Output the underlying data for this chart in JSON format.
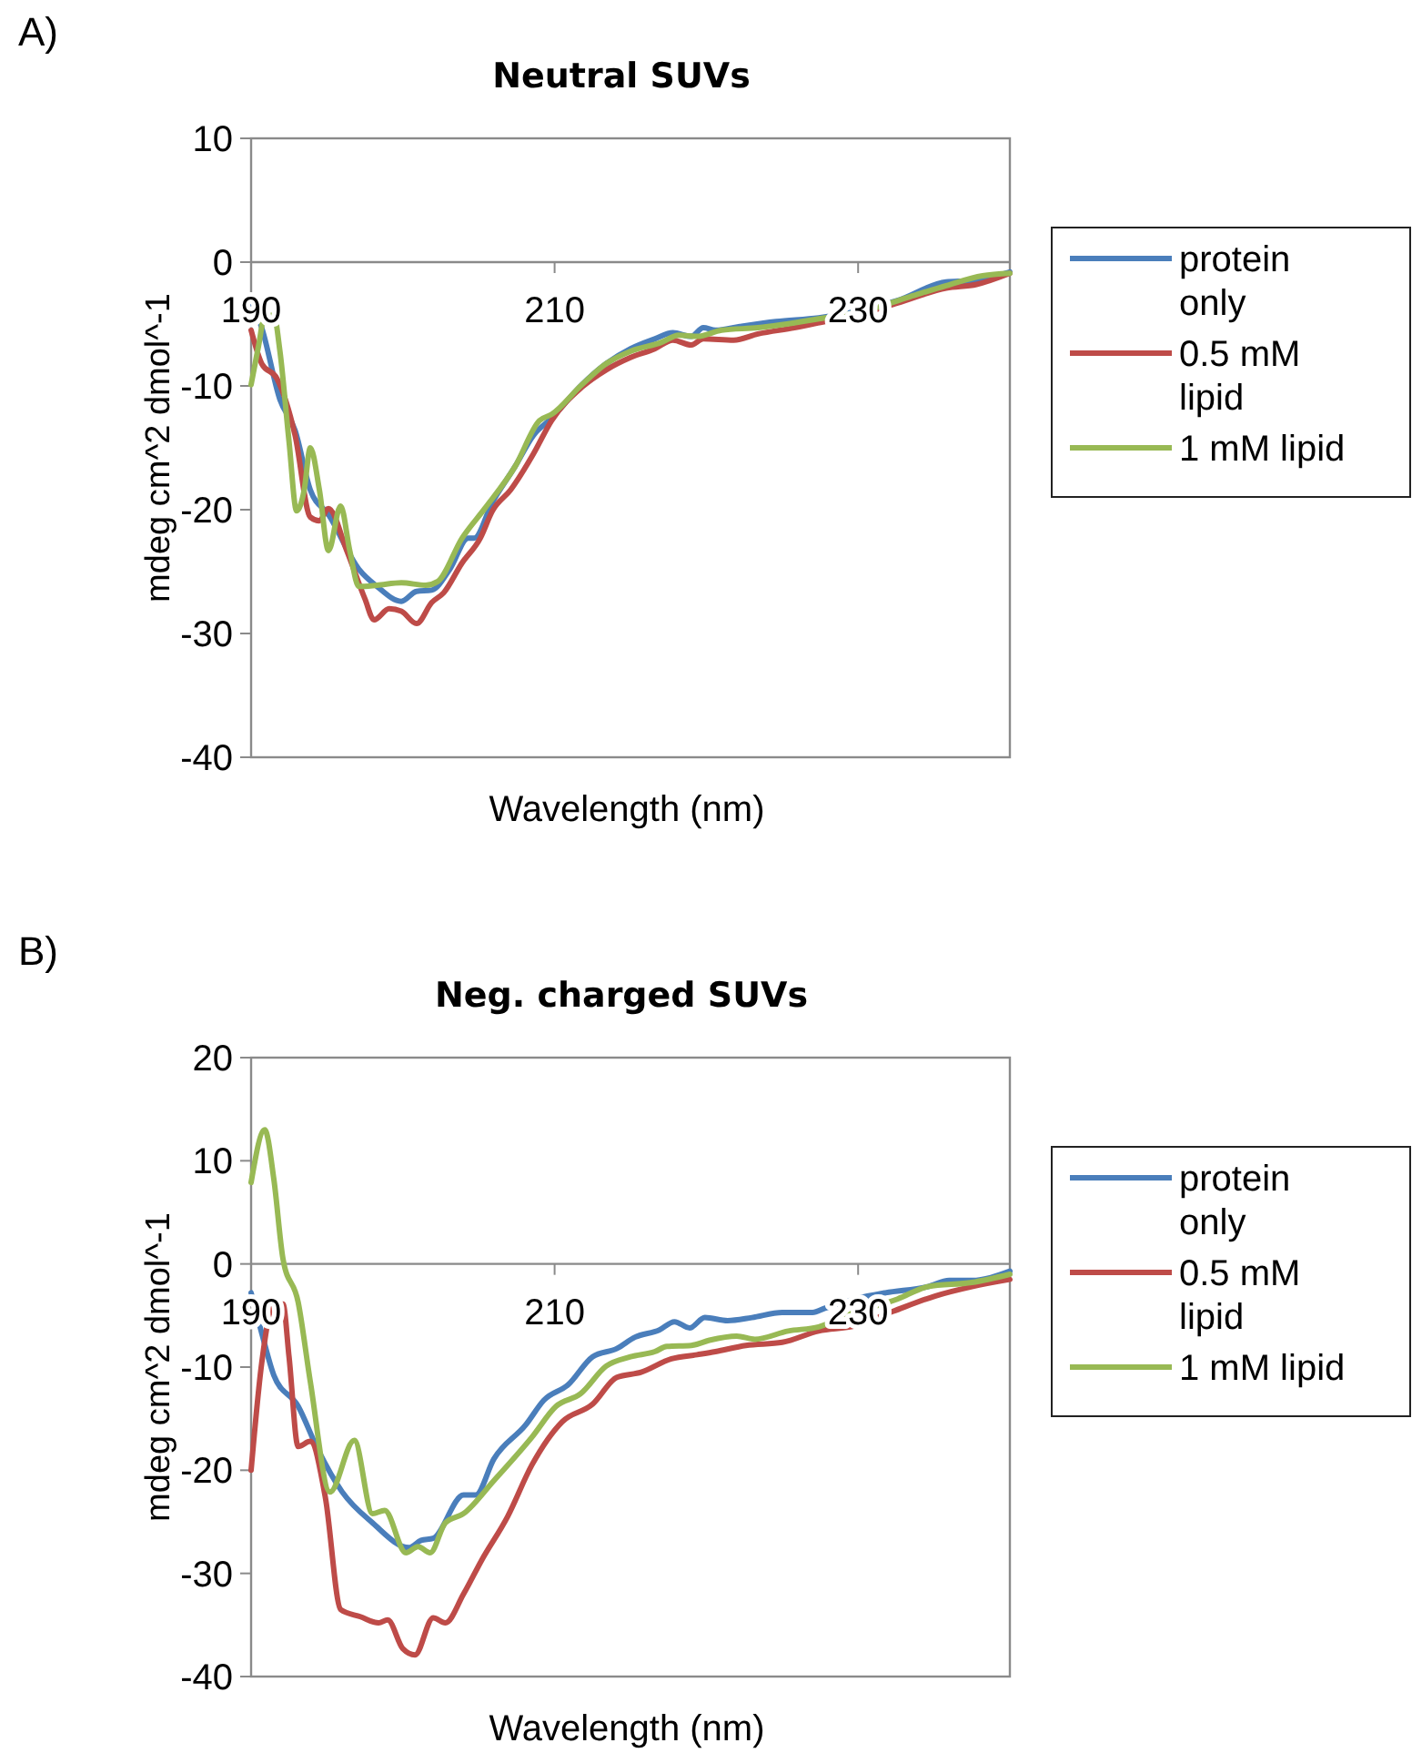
{
  "chart_data": [
    {
      "type": "line",
      "title": "Neutral SUVs",
      "xlabel": "Wavelength (nm)",
      "ylabel": "mdeg cm^2 dmol^-1",
      "annotations": [
        "A)"
      ],
      "xlim": [
        190,
        240
      ],
      "xticks": [
        190,
        210,
        230
      ],
      "ylim": [
        -40,
        10
      ],
      "yticks": [
        -40,
        -30,
        -20,
        -10,
        0,
        10
      ],
      "grid": false,
      "legend": "right",
      "line_style": "solid",
      "marker": "none",
      "series": [
        {
          "name": "protein only",
          "color": "#4a7ebb",
          "x": [
            190,
            190.7,
            191.9,
            192.9,
            193.9,
            195.1,
            197.1,
            198.3,
            199.9,
            200.9,
            201.9,
            203.1,
            204.3,
            204.7,
            205.9,
            207.4,
            208.6,
            209.8,
            211.8,
            213.4,
            215,
            216.6,
            217.8,
            219,
            219.8,
            220.6,
            222.2,
            224.6,
            227.4,
            229.8,
            232.6,
            235.8,
            237.4,
            240
          ],
          "values": [
            -3.1,
            -5.3,
            -11.1,
            -13.6,
            -18.4,
            -20.4,
            -24.8,
            -26.2,
            -27.4,
            -26.6,
            -26.5,
            -24.8,
            -22.3,
            -22.3,
            -19.4,
            -16.5,
            -14,
            -12.6,
            -9.9,
            -8.2,
            -7,
            -6.2,
            -5.7,
            -6,
            -5.3,
            -5.5,
            -5.2,
            -4.8,
            -4.5,
            -4,
            -3.1,
            -1.6,
            -1.5,
            -0.8
          ]
        },
        {
          "name": "0.5 mM lipid",
          "color": "#be4b48",
          "x": [
            190,
            190.7,
            191.7,
            192.9,
            193.9,
            194.5,
            195.1,
            196.3,
            197.5,
            198.1,
            199.1,
            199.9,
            200.9,
            201.9,
            202.7,
            203.9,
            205.1,
            205.9,
            207.1,
            208.6,
            209.8,
            211.8,
            213.4,
            215,
            216.6,
            217.8,
            219,
            219.8,
            221.8,
            223.4,
            225.8,
            227.8,
            229.8,
            232.6,
            235.8,
            237.8,
            240
          ],
          "values": [
            -5.5,
            -8.2,
            -9.4,
            -14,
            -20.6,
            -20.9,
            -19.9,
            -23.3,
            -27.2,
            -28.9,
            -28,
            -28.2,
            -29.2,
            -27.5,
            -26.7,
            -24.3,
            -22.3,
            -20.1,
            -18.4,
            -15.5,
            -12.8,
            -10.1,
            -8.7,
            -7.7,
            -7,
            -6.3,
            -6.7,
            -6.2,
            -6.3,
            -5.8,
            -5.3,
            -4.8,
            -4.3,
            -3.3,
            -2.1,
            -1.8,
            -0.9
          ]
        },
        {
          "name": "1 mM lipid",
          "color": "#98b954",
          "x": [
            190,
            190.5,
            190.9,
            191.5,
            191.9,
            192.5,
            193,
            193.5,
            193.9,
            194.5,
            195.1,
            195.9,
            196.5,
            197.1,
            198.3,
            199.9,
            201.5,
            202.3,
            203.9,
            205.4,
            207.4,
            209,
            209.8,
            211.8,
            213.4,
            215,
            217,
            218.2,
            219.4,
            221,
            223.4,
            227.8,
            230.2,
            233.4,
            235.8,
            238.2,
            240
          ],
          "values": [
            -9.9,
            -6.7,
            -4.3,
            -4.3,
            -7.2,
            -14.5,
            -20.1,
            -18.4,
            -15,
            -18.4,
            -23.3,
            -19.7,
            -23.3,
            -26.2,
            -26.1,
            -25.9,
            -26.1,
            -25.8,
            -22.3,
            -19.9,
            -16.5,
            -12.8,
            -12.3,
            -9.9,
            -8.2,
            -7.2,
            -6.5,
            -5.9,
            -6,
            -5.5,
            -5.3,
            -4.5,
            -4,
            -2.8,
            -1.9,
            -1.1,
            -0.9
          ]
        }
      ]
    },
    {
      "type": "line",
      "title": "Neg. charged SUVs",
      "xlabel": "Wavelength (nm)",
      "ylabel": "mdeg cm^2 dmol^-1",
      "annotations": [
        "B)"
      ],
      "xlim": [
        190,
        240
      ],
      "xticks": [
        190,
        210,
        230
      ],
      "ylim": [
        -40,
        20
      ],
      "yticks": [
        -40,
        -30,
        -20,
        -10,
        0,
        10,
        20
      ],
      "grid": false,
      "legend": "right",
      "line_style": "solid",
      "marker": "none",
      "series": [
        {
          "name": "protein only",
          "color": "#4a7ebb",
          "x": [
            190,
            190.7,
            191.5,
            193.1,
            194.4,
            196,
            198,
            200.4,
            201.2,
            202,
            204,
            204.8,
            206,
            208.1,
            209.3,
            210.9,
            212.5,
            214.1,
            215.3,
            216.9,
            217.9,
            218.9,
            219.9,
            221.4,
            223,
            225,
            227,
            227.8,
            229.8,
            231.8,
            234.6,
            236,
            237.5,
            240
          ],
          "values": [
            -2.8,
            -6.7,
            -10.8,
            -13.8,
            -18,
            -22.1,
            -25.1,
            -27.5,
            -26.8,
            -26.6,
            -22.4,
            -22.4,
            -18.9,
            -15.6,
            -13.2,
            -11.7,
            -9,
            -8.2,
            -7.1,
            -6.4,
            -5.6,
            -6.2,
            -5.2,
            -5.5,
            -5.2,
            -4.7,
            -4.7,
            -4.3,
            -3.4,
            -2.8,
            -2.2,
            -1.6,
            -1.6,
            -0.7
          ]
        },
        {
          "name": "0.5 mM lipid",
          "color": "#be4b48",
          "x": [
            190,
            190.7,
            191.5,
            192.1,
            192.5,
            193.1,
            193.9,
            194.9,
            195.9,
            197.2,
            198.4,
            199,
            200,
            200.8,
            202,
            202.8,
            204,
            205.2,
            206.9,
            208.5,
            210.5,
            212.5,
            214.1,
            215.7,
            217.7,
            219.4,
            220.6,
            222.6,
            225,
            227.4,
            229.8,
            232.3,
            235.1,
            237.5,
            240
          ],
          "values": [
            -20,
            -9.6,
            -3.9,
            -3.9,
            -9,
            -17.7,
            -17.2,
            -22.7,
            -33.5,
            -34.2,
            -34.8,
            -34.5,
            -37.3,
            -37.9,
            -34.3,
            -34.8,
            -32,
            -28.7,
            -24.5,
            -19.5,
            -15.3,
            -13.6,
            -11,
            -10.5,
            -9.2,
            -8.8,
            -8.5,
            -7.9,
            -7.6,
            -6.5,
            -6,
            -4.6,
            -3.1,
            -2.2,
            -1.5
          ]
        },
        {
          "name": "1 mM lipid",
          "color": "#98b954",
          "x": [
            190,
            190.9,
            191.5,
            192.1,
            193.1,
            193.9,
            195.2,
            196.8,
            198,
            198.8,
            200.2,
            201,
            201.8,
            202.8,
            204,
            206,
            208.5,
            210.1,
            211.7,
            213.4,
            215,
            216.6,
            217.4,
            219,
            220.2,
            222,
            223.2,
            225.4,
            227.4,
            229.4,
            232.6,
            234.6,
            237.5,
            240
          ],
          "values": [
            7.9,
            13,
            8.2,
            0.5,
            -3.7,
            -11.4,
            -22.1,
            -17.1,
            -24.2,
            -23.9,
            -28,
            -27.4,
            -28,
            -25.1,
            -24.2,
            -21,
            -16.8,
            -13.8,
            -12.6,
            -9.9,
            -9,
            -8.5,
            -8,
            -7.9,
            -7.4,
            -7,
            -7.3,
            -6.5,
            -6.1,
            -4.9,
            -3.4,
            -2.2,
            -1.8,
            -1
          ]
        }
      ]
    }
  ]
}
